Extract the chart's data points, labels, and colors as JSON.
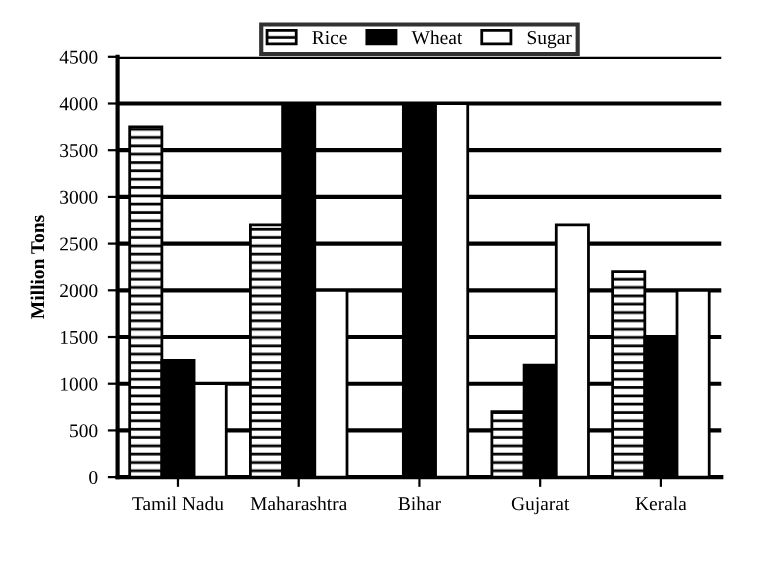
{
  "chart_data": {
    "type": "bar",
    "ylabel": "Million Tons",
    "categories": [
      "Tamil Nadu",
      "Maharashtra",
      "Bihar",
      "Gujarat",
      "Kerala"
    ],
    "series": [
      {
        "name": "Rice",
        "color": "#000000",
        "values": [
          3750,
          2700,
          0,
          700,
          2200
        ]
      },
      {
        "name": "Wheat",
        "color": "#000000",
        "values": [
          1250,
          4000,
          4000,
          1200,
          1500
        ]
      },
      {
        "name": "Sugar",
        "color": "#ffffff",
        "values": [
          1000,
          2000,
          4000,
          2700,
          2000
        ]
      }
    ],
    "ylim": [
      0,
      4500
    ],
    "yticks": [
      0,
      500,
      1000,
      1500,
      2000,
      2500,
      3000,
      3500,
      4000,
      4500
    ],
    "grid": "y",
    "legend": "top"
  }
}
